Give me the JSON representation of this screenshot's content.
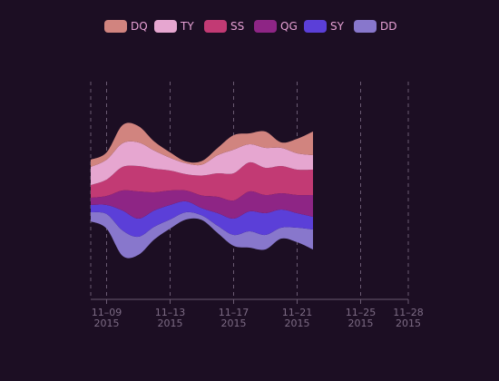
{
  "chart_data": {
    "type": "area",
    "subtype": "streamgraph",
    "title": "",
    "xlabel": "",
    "ylabel": "",
    "legend_position": "top",
    "x_axis": {
      "ticks": [
        {
          "line1": "11–09",
          "line2": "2015",
          "date": "2015-11-09"
        },
        {
          "line1": "11–13",
          "line2": "2015",
          "date": "2015-11-13"
        },
        {
          "line1": "11–17",
          "line2": "2015",
          "date": "2015-11-17"
        },
        {
          "line1": "11–21",
          "line2": "2015",
          "date": "2015-11-21"
        },
        {
          "line1": "11–25",
          "line2": "2015",
          "date": "2015-11-25"
        },
        {
          "line1": "11–28",
          "line2": "2015",
          "date": "2015-11-28"
        }
      ],
      "range": [
        "2015-11-08",
        "2015-11-28"
      ]
    },
    "x": [
      "2015-11-08",
      "2015-11-09",
      "2015-11-10",
      "2015-11-11",
      "2015-11-12",
      "2015-11-13",
      "2015-11-14",
      "2015-11-15",
      "2015-11-16",
      "2015-11-17",
      "2015-11-18",
      "2015-11-19",
      "2015-11-20",
      "2015-11-21",
      "2015-11-22"
    ],
    "series": [
      {
        "name": "DD",
        "color": "#8877cc",
        "values": [
          10,
          16,
          28,
          20,
          14,
          10,
          8,
          5,
          8,
          12,
          18,
          16,
          12,
          16,
          22
        ]
      },
      {
        "name": "SY",
        "color": "#5b3fd8",
        "values": [
          8,
          10,
          22,
          20,
          18,
          16,
          12,
          8,
          14,
          18,
          22,
          24,
          20,
          16,
          14
        ]
      },
      {
        "name": "QG",
        "color": "#8e2585",
        "values": [
          8,
          10,
          22,
          30,
          20,
          16,
          12,
          14,
          18,
          20,
          22,
          20,
          18,
          20,
          24
        ]
      },
      {
        "name": "SS",
        "color": "#c23a74",
        "values": [
          14,
          18,
          26,
          28,
          26,
          22,
          18,
          22,
          26,
          30,
          32,
          30,
          30,
          28,
          28
        ]
      },
      {
        "name": "TY",
        "color": "#e6a6d0",
        "values": [
          20,
          22,
          26,
          26,
          20,
          14,
          12,
          12,
          20,
          26,
          20,
          22,
          20,
          18,
          16
        ]
      },
      {
        "name": "DQ",
        "color": "#d1847f",
        "values": [
          8,
          8,
          20,
          18,
          10,
          6,
          2,
          4,
          8,
          16,
          12,
          18,
          6,
          16,
          26
        ]
      }
    ]
  }
}
